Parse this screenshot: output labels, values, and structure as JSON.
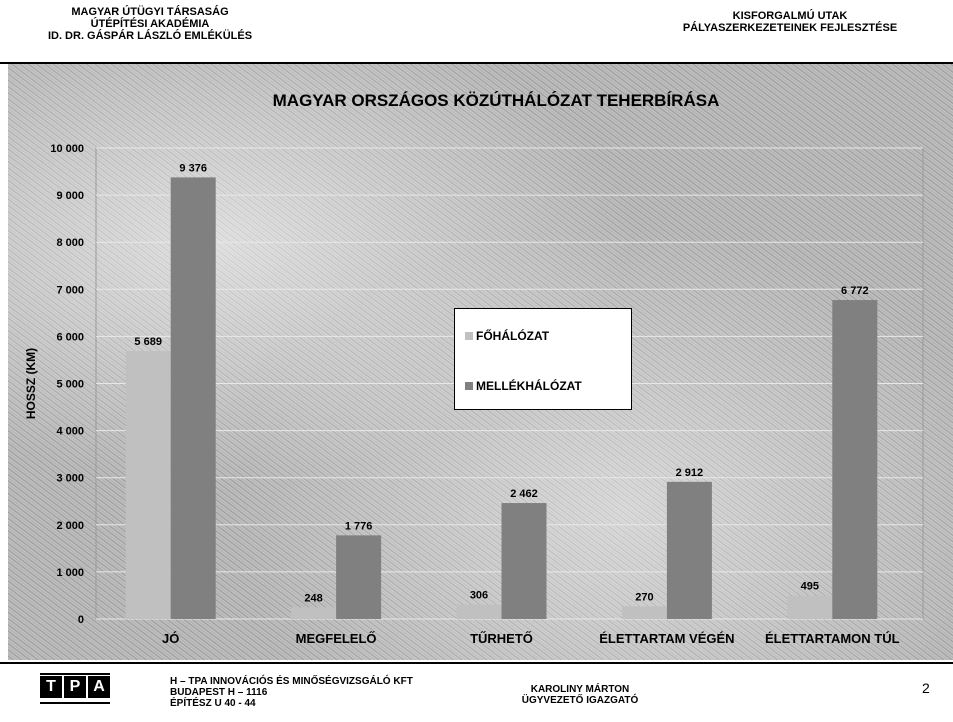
{
  "header": {
    "left_lines": [
      "MAGYAR ÚTÜGYI TÁRSASÁG",
      "ÚTÉPÍTÉSI AKADÉMIA",
      "ID. DR. GÁSPÁR LÁSZLÓ EMLÉKÜLÉS"
    ],
    "right_lines": [
      "KISFORGALMÚ UTAK",
      "PÁLYASZERKEZETEINEK FEJLESZTÉSE"
    ]
  },
  "chart_data": {
    "type": "bar",
    "title": "MAGYAR ORSZÁGOS KÖZÚTHÁLÓZAT TEHERBÍRÁSA",
    "xlabel": "",
    "ylabel": "HOSSZ (KM)",
    "ylim": [
      0,
      10000
    ],
    "yticks": [
      0,
      1000,
      2000,
      3000,
      4000,
      5000,
      6000,
      7000,
      8000,
      9000,
      10000
    ],
    "ytick_labels": [
      "0",
      "1 000",
      "2 000",
      "3 000",
      "4 000",
      "5 000",
      "6 000",
      "7 000",
      "8 000",
      "9 000",
      "10 000"
    ],
    "categories": [
      "JÓ",
      "MEGFELELŐ",
      "TŰRHETŐ",
      "ÉLETTARTAM VÉGÉN",
      "ÉLETTARTAMON TÚL"
    ],
    "series": [
      {
        "name": "FŐHÁLÓZAT",
        "color": "#c0c0c0",
        "values": [
          5689,
          248,
          306,
          270,
          495
        ],
        "labels": [
          "5 689",
          "248",
          "306",
          "270",
          "495"
        ]
      },
      {
        "name": "MELLÉKHÁLÓZAT",
        "color": "#808080",
        "values": [
          9376,
          1776,
          2462,
          2912,
          6772
        ],
        "labels": [
          "9 376",
          "1 776",
          "2 462",
          "2 912",
          "6 772"
        ]
      }
    ],
    "grid": true,
    "legend_position": "center"
  },
  "footer": {
    "logo_letters": [
      "T",
      "P",
      "A"
    ],
    "company_lines": [
      "H – TPA INNOVÁCIÓS ÉS MINŐSÉGVIZSGÁLÓ KFT",
      "BUDAPEST  H – 1116",
      "ÉPÍTÉSZ U 40 - 44"
    ],
    "person_lines": [
      "KAROLINY MÁRTON",
      "ÜGYVEZETŐ IGAZGATÓ"
    ],
    "page_number": "2"
  }
}
